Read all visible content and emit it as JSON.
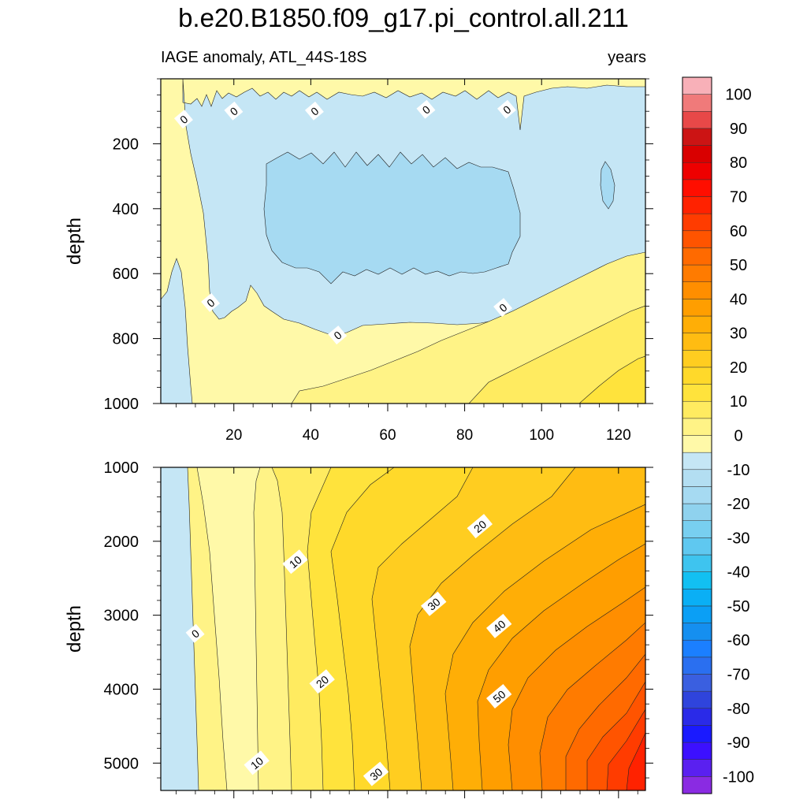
{
  "figure": {
    "title": "b.e20.B1850.f09_g17.pi_control.all.211",
    "subtitle_left": "IAGE anomaly, ATL_44S-18S",
    "subtitle_right": "years"
  },
  "chart_data": [
    {
      "type": "heatmap",
      "panel": "upper",
      "title": "IAGE anomaly, ATL_44S-18S",
      "units": "years",
      "xlabel": "",
      "ylabel": "depth",
      "xlim": [
        1,
        127
      ],
      "ylim": [
        1000,
        0
      ],
      "x_ticks": [
        20,
        40,
        60,
        80,
        100,
        120
      ],
      "x_tick_labels": [
        "20",
        "40",
        "60",
        "80",
        "100",
        "120"
      ],
      "y_ticks": [
        200,
        400,
        600,
        800,
        1000
      ],
      "y_tick_labels": [
        "200",
        "400",
        "600",
        "800",
        "1000"
      ],
      "contour_labels": [
        {
          "text": "0",
          "x": 7,
          "y": 125
        },
        {
          "text": "0",
          "x": 20,
          "y": 100
        },
        {
          "text": "0",
          "x": 41,
          "y": 100
        },
        {
          "text": "0",
          "x": 70,
          "y": 95
        },
        {
          "text": "0",
          "x": 91,
          "y": 95
        },
        {
          "text": "0",
          "x": 14,
          "y": 690
        },
        {
          "text": "0",
          "x": 47,
          "y": 790
        },
        {
          "text": "0",
          "x": 90,
          "y": 705
        }
      ]
    },
    {
      "type": "heatmap",
      "panel": "lower",
      "xlabel": "",
      "ylabel": "depth",
      "xlim": [
        1,
        127
      ],
      "ylim": [
        5370,
        1000
      ],
      "x_ticks": [
        20,
        40,
        60,
        80,
        100,
        120
      ],
      "y_ticks": [
        1000,
        2000,
        3000,
        4000,
        5000
      ],
      "y_tick_labels": [
        "1000",
        "2000",
        "3000",
        "4000",
        "5000"
      ],
      "contour_labels": [
        {
          "text": "0",
          "x": 10,
          "y": 3250
        },
        {
          "text": "10",
          "x": 36,
          "y": 2280
        },
        {
          "text": "10",
          "x": 26,
          "y": 5000
        },
        {
          "text": "20",
          "x": 84,
          "y": 1800
        },
        {
          "text": "20",
          "x": 43,
          "y": 3900
        },
        {
          "text": "30",
          "x": 72,
          "y": 2850
        },
        {
          "text": "30",
          "x": 57,
          "y": 5150
        },
        {
          "text": "40",
          "x": 89,
          "y": 3150
        },
        {
          "text": "50",
          "x": 89,
          "y": 4100
        }
      ]
    }
  ],
  "colorbar": {
    "levels": [
      -100,
      -95,
      -90,
      -85,
      -80,
      -75,
      -70,
      -65,
      -60,
      -55,
      -50,
      -45,
      -40,
      -35,
      -30,
      -25,
      -20,
      -15,
      -10,
      -5,
      0,
      5,
      10,
      15,
      20,
      25,
      30,
      35,
      40,
      45,
      50,
      55,
      60,
      65,
      70,
      75,
      80,
      85,
      90,
      95,
      100
    ],
    "labels": [
      "-100",
      "-90",
      "-80",
      "-70",
      "-60",
      "-50",
      "-40",
      "-30",
      "-20",
      "-10",
      "0",
      "10",
      "20",
      "30",
      "40",
      "50",
      "60",
      "70",
      "80",
      "90",
      "100"
    ],
    "colors": [
      "#8a2be2",
      "#5a20f0",
      "#3c10ff",
      "#1a1aff",
      "#2a2ae8",
      "#2f44dc",
      "#3a5fe0",
      "#2a6ff0",
      "#1b7fff",
      "#158ff0",
      "#0b9ff5",
      "#0aaff5",
      "#12c0f2",
      "#3ec4ef",
      "#5fc8f0",
      "#78cff0",
      "#8fd2ee",
      "#a6daf2",
      "#b3def2",
      "#c5e6f5",
      "#fff9a8",
      "#fff386",
      "#ffeb60",
      "#ffe33c",
      "#ffd92a",
      "#ffcd20",
      "#ffbc12",
      "#ffae06",
      "#ff9e00",
      "#ff8e00",
      "#ff7b00",
      "#ff6a00",
      "#ff5400",
      "#ff3c00",
      "#ff2200",
      "#ff0e00",
      "#ee0000",
      "#d90000",
      "#cc1414",
      "#e84848",
      "#f07a7a",
      "#f8b0b8"
    ]
  }
}
